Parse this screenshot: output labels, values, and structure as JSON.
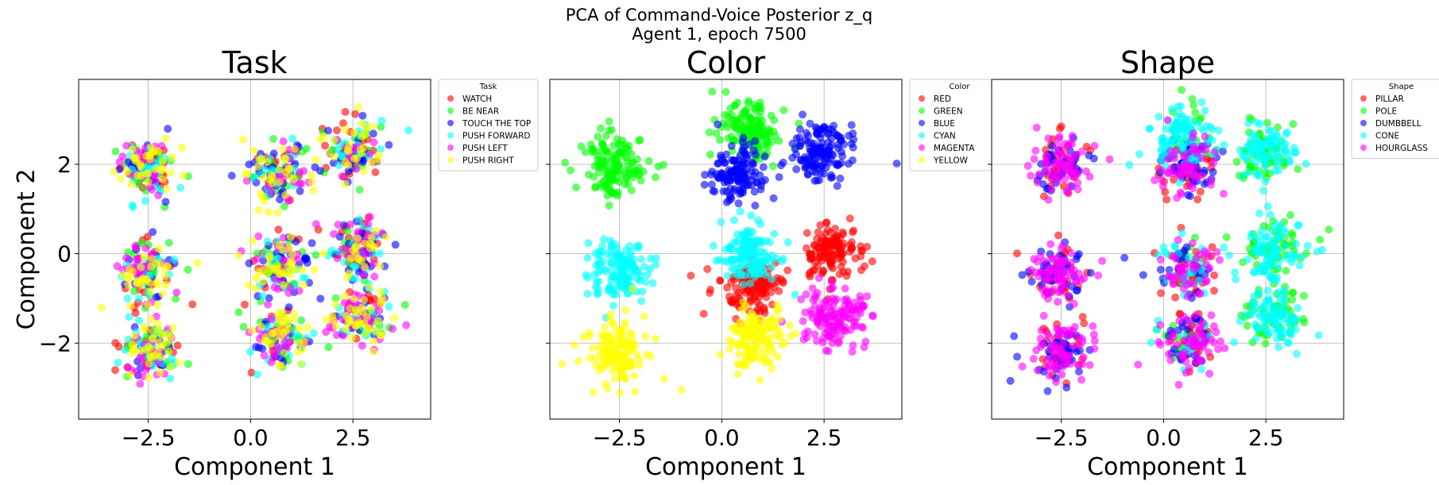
{
  "figure": {
    "title_line1": "PCA of Command-Voice Posterior z_q",
    "title_line2": "Agent 1, epoch 7500"
  },
  "chart_data": [
    {
      "type": "scatter",
      "title": "Task",
      "xlabel": "Component 1",
      "ylabel": "Component 2",
      "xlim": [
        -4.2,
        4.4
      ],
      "ylim": [
        -3.7,
        3.9
      ],
      "xticks": [
        -2.5,
        0.0,
        2.5
      ],
      "xtick_labels": [
        "−2.5",
        "0.0",
        "2.5"
      ],
      "yticks": [
        -2,
        0,
        2
      ],
      "ytick_labels": [
        "−2",
        "0",
        "2"
      ],
      "grid": true,
      "legend_title": "Task",
      "legend_position": "outside-right",
      "point_alpha": 0.6,
      "clusters": [
        [
          -2.5,
          2.0
        ],
        [
          0.7,
          1.8
        ],
        [
          2.5,
          2.3
        ],
        [
          -2.6,
          -0.4
        ],
        [
          0.7,
          -0.3
        ],
        [
          2.7,
          0.1
        ],
        [
          -2.5,
          -2.2
        ],
        [
          0.7,
          -1.9
        ],
        [
          2.7,
          -1.4
        ]
      ],
      "series": [
        {
          "name": "WATCH",
          "color": "#ff0000",
          "mix": [
            0.15,
            0.1,
            0.2,
            0.15,
            0.1,
            0.2,
            0.15,
            0.1,
            0.1
          ]
        },
        {
          "name": "BE NEAR",
          "color": "#00ff00",
          "mix": [
            0.15,
            0.15,
            0.15,
            0.15,
            0.15,
            0.1,
            0.15,
            0.15,
            0.1
          ]
        },
        {
          "name": "TOUCH THE TOP",
          "color": "#0000ff",
          "mix": [
            0.1,
            0.2,
            0.2,
            0.1,
            0.2,
            0.2,
            0.1,
            0.15,
            0.1
          ]
        },
        {
          "name": "PUSH FORWARD",
          "color": "#00ffff",
          "mix": [
            0.2,
            0.15,
            0.15,
            0.15,
            0.15,
            0.15,
            0.2,
            0.15,
            0.15
          ]
        },
        {
          "name": "PUSH LEFT",
          "color": "#ff00ff",
          "mix": [
            0.15,
            0.15,
            0.1,
            0.2,
            0.15,
            0.2,
            0.15,
            0.2,
            0.25
          ]
        },
        {
          "name": "PUSH RIGHT",
          "color": "#ffff00",
          "mix": [
            0.25,
            0.25,
            0.2,
            0.25,
            0.25,
            0.15,
            0.25,
            0.25,
            0.3
          ]
        }
      ]
    },
    {
      "type": "scatter",
      "title": "Color",
      "xlabel": "Component 1",
      "ylabel": "",
      "xlim": [
        -4.2,
        4.4
      ],
      "ylim": [
        -3.7,
        3.9
      ],
      "xticks": [
        -2.5,
        0.0,
        2.5
      ],
      "xtick_labels": [
        "−2.5",
        "0.0",
        "2.5"
      ],
      "yticks": [
        -2,
        0,
        2
      ],
      "ytick_labels": [
        "",
        "",
        ""
      ],
      "grid": true,
      "legend_title": "Color",
      "legend_position": "outside-right",
      "point_alpha": 0.6,
      "clusters": [
        [
          -2.6,
          2.0
        ],
        [
          0.7,
          2.8
        ],
        [
          0.4,
          1.8
        ],
        [
          2.4,
          2.3
        ],
        [
          -2.5,
          -0.4
        ],
        [
          0.8,
          -0.7
        ],
        [
          0.7,
          0.0
        ],
        [
          2.7,
          0.1
        ],
        [
          -2.6,
          -2.2
        ],
        [
          0.8,
          -1.9
        ],
        [
          2.7,
          -1.4
        ]
      ],
      "series": [
        {
          "name": "RED",
          "color": "#ff0000",
          "clusters": [
            5,
            7
          ]
        },
        {
          "name": "GREEN",
          "color": "#00ff00",
          "clusters": [
            0,
            1
          ]
        },
        {
          "name": "BLUE",
          "color": "#0000ff",
          "clusters": [
            2,
            3
          ]
        },
        {
          "name": "CYAN",
          "color": "#00ffff",
          "clusters": [
            4,
            6
          ]
        },
        {
          "name": "MAGENTA",
          "color": "#ff00ff",
          "clusters": [
            10
          ]
        },
        {
          "name": "YELLOW",
          "color": "#ffff00",
          "clusters": [
            8,
            9
          ]
        }
      ]
    },
    {
      "type": "scatter",
      "title": "Shape",
      "xlabel": "Component 1",
      "ylabel": "",
      "xlim": [
        -4.2,
        4.4
      ],
      "ylim": [
        -3.7,
        3.9
      ],
      "xticks": [
        -2.5,
        0.0,
        2.5
      ],
      "xtick_labels": [
        "−2.5",
        "0.0",
        "2.5"
      ],
      "yticks": [
        -2,
        0,
        2
      ],
      "ytick_labels": [
        "",
        "",
        ""
      ],
      "grid": true,
      "legend_title": "Shape",
      "legend_position": "outside-right",
      "point_alpha": 0.6,
      "clusters": [
        [
          -2.5,
          2.0
        ],
        [
          0.5,
          2.7
        ],
        [
          0.6,
          1.9
        ],
        [
          2.5,
          2.3
        ],
        [
          -2.6,
          -0.4
        ],
        [
          0.6,
          -0.3
        ],
        [
          2.7,
          0.1
        ],
        [
          -2.5,
          -2.2
        ],
        [
          0.7,
          -1.9
        ],
        [
          2.7,
          -1.4
        ]
      ],
      "series": [
        {
          "name": "PILLAR",
          "color": "#ff0000",
          "mix": [
            0.2,
            0.0,
            0.2,
            0.0,
            0.2,
            0.2,
            0.0,
            0.2,
            0.2,
            0.0
          ]
        },
        {
          "name": "POLE",
          "color": "#00ff00",
          "mix": [
            0.0,
            0.2,
            0.0,
            0.4,
            0.0,
            0.1,
            0.4,
            0.0,
            0.1,
            0.4
          ]
        },
        {
          "name": "DUMBBELL",
          "color": "#0000ff",
          "mix": [
            0.3,
            0.0,
            0.4,
            0.0,
            0.3,
            0.2,
            0.0,
            0.3,
            0.2,
            0.0
          ]
        },
        {
          "name": "CONE",
          "color": "#00ffff",
          "mix": [
            0.0,
            0.8,
            0.0,
            0.6,
            0.0,
            0.2,
            0.6,
            0.0,
            0.1,
            0.6
          ]
        },
        {
          "name": "HOURGLASS",
          "color": "#ff00ff",
          "mix": [
            0.5,
            0.0,
            0.4,
            0.0,
            0.5,
            0.3,
            0.0,
            0.5,
            0.4,
            0.0
          ]
        }
      ]
    }
  ]
}
